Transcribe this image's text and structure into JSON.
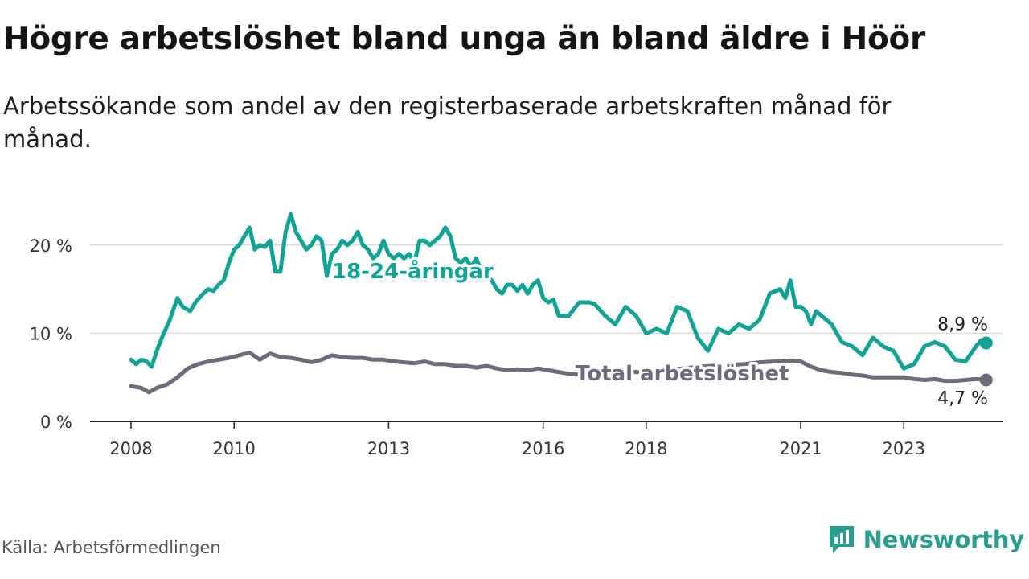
{
  "title": "Högre arbetslöshet bland unga än bland äldre i Höör",
  "subtitle": "Arbetssökande som andel av den registerbaserade arbetskraften månad för månad.",
  "source": "Källa: Arbetsförmedlingen",
  "brand": "Newsworthy",
  "colors": {
    "youth": "#12a394",
    "total": "#6e6c78",
    "grid": "#dddddd",
    "axis": "#222222",
    "brand": "#2a9d8f"
  },
  "chart_data": {
    "type": "line",
    "title": "Högre arbetslöshet bland unga än bland äldre i Höör",
    "xlabel": "",
    "ylabel": "",
    "xlim": [
      2008,
      2024.9
    ],
    "ylim": [
      0,
      25
    ],
    "yticks": [
      0,
      10,
      20
    ],
    "ytick_labels": [
      "0 %",
      "10 %",
      "20 %"
    ],
    "xticks": [
      2008,
      2010,
      2013,
      2016,
      2018,
      2021,
      2023
    ],
    "xtick_labels": [
      "2008",
      "2010",
      "2013",
      "2016",
      "2018",
      "2021",
      "2023"
    ],
    "grid": true,
    "series": [
      {
        "name": "18-24-åringar",
        "end_label": "8,9 %",
        "color": "#12a394",
        "x": [
          2008.0,
          2008.1,
          2008.2,
          2008.3,
          2008.4,
          2008.5,
          2008.6,
          2008.75,
          2008.9,
          2009.0,
          2009.15,
          2009.25,
          2009.4,
          2009.5,
          2009.6,
          2009.7,
          2009.8,
          2009.9,
          2010.0,
          2010.1,
          2010.2,
          2010.3,
          2010.4,
          2010.5,
          2010.6,
          2010.7,
          2010.8,
          2010.9,
          2011.0,
          2011.1,
          2011.2,
          2011.3,
          2011.4,
          2011.5,
          2011.6,
          2011.7,
          2011.8,
          2011.9,
          2012.0,
          2012.1,
          2012.2,
          2012.3,
          2012.4,
          2012.5,
          2012.6,
          2012.7,
          2012.8,
          2012.9,
          2013.0,
          2013.1,
          2013.2,
          2013.3,
          2013.4,
          2013.5,
          2013.6,
          2013.7,
          2013.8,
          2013.9,
          2014.0,
          2014.1,
          2014.2,
          2014.3,
          2014.4,
          2014.5,
          2014.6,
          2014.7,
          2014.8,
          2014.9,
          2015.0,
          2015.1,
          2015.2,
          2015.3,
          2015.4,
          2015.5,
          2015.6,
          2015.7,
          2015.8,
          2015.9,
          2016.0,
          2016.1,
          2016.2,
          2016.3,
          2016.5,
          2016.7,
          2016.9,
          2017.0,
          2017.2,
          2017.4,
          2017.6,
          2017.8,
          2018.0,
          2018.2,
          2018.4,
          2018.6,
          2018.8,
          2019.0,
          2019.2,
          2019.4,
          2019.6,
          2019.8,
          2020.0,
          2020.2,
          2020.4,
          2020.6,
          2020.7,
          2020.8,
          2020.9,
          2021.0,
          2021.1,
          2021.2,
          2021.3,
          2021.4,
          2021.6,
          2021.8,
          2022.0,
          2022.2,
          2022.4,
          2022.6,
          2022.8,
          2023.0,
          2023.2,
          2023.4,
          2023.6,
          2023.8,
          2024.0,
          2024.2,
          2024.4,
          2024.5,
          2024.6
        ],
        "y": [
          7.0,
          6.5,
          7.0,
          6.8,
          6.2,
          8.0,
          9.5,
          11.5,
          14.0,
          13.0,
          12.5,
          13.5,
          14.5,
          15.0,
          14.8,
          15.5,
          16.0,
          18.0,
          19.5,
          20.0,
          21.0,
          22.0,
          19.5,
          20.0,
          19.8,
          20.5,
          17.0,
          17.0,
          21.5,
          23.5,
          21.5,
          20.5,
          19.5,
          20.0,
          21.0,
          20.5,
          16.5,
          19.0,
          19.5,
          20.5,
          20.0,
          20.5,
          21.5,
          20.0,
          19.5,
          18.5,
          19.0,
          20.5,
          19.0,
          18.5,
          19.0,
          18.5,
          19.0,
          18.0,
          20.5,
          20.5,
          20.0,
          20.5,
          21.0,
          22.0,
          21.0,
          18.5,
          18.0,
          18.5,
          17.5,
          18.5,
          17.0,
          16.5,
          16.0,
          15.0,
          14.5,
          15.5,
          15.5,
          14.8,
          15.5,
          14.5,
          15.5,
          16.0,
          14.0,
          13.5,
          13.8,
          12.0,
          12.0,
          13.5,
          13.5,
          13.3,
          12.0,
          11.0,
          13.0,
          12.0,
          10.0,
          10.5,
          10.0,
          13.0,
          12.5,
          9.5,
          8.0,
          10.5,
          10.0,
          11.0,
          10.5,
          11.5,
          14.5,
          15.0,
          14.0,
          16.0,
          13.0,
          13.0,
          12.5,
          11.0,
          12.5,
          12.0,
          11.0,
          9.0,
          8.5,
          7.5,
          9.5,
          8.5,
          8.0,
          6.0,
          6.5,
          8.5,
          9.0,
          8.5,
          7.0,
          6.8,
          8.5,
          9.2,
          8.9
        ]
      },
      {
        "name": "Total arbetslöshet",
        "end_label": "4,7 %",
        "color": "#6e6c78",
        "x": [
          2008.0,
          2008.2,
          2008.35,
          2008.5,
          2008.7,
          2008.9,
          2009.1,
          2009.3,
          2009.5,
          2009.7,
          2009.9,
          2010.1,
          2010.3,
          2010.5,
          2010.7,
          2010.9,
          2011.1,
          2011.3,
          2011.5,
          2011.7,
          2011.9,
          2012.1,
          2012.3,
          2012.5,
          2012.7,
          2012.9,
          2013.1,
          2013.3,
          2013.5,
          2013.7,
          2013.9,
          2014.1,
          2014.3,
          2014.5,
          2014.7,
          2014.9,
          2015.1,
          2015.3,
          2015.5,
          2015.7,
          2015.9,
          2016.1,
          2016.3,
          2016.5,
          2016.7,
          2016.9,
          2017.2,
          2017.5,
          2017.8,
          2018.1,
          2018.4,
          2018.7,
          2019.0,
          2019.3,
          2019.6,
          2019.9,
          2020.2,
          2020.5,
          2020.8,
          2021.0,
          2021.2,
          2021.4,
          2021.6,
          2021.8,
          2022.0,
          2022.2,
          2022.4,
          2022.6,
          2022.8,
          2023.0,
          2023.2,
          2023.4,
          2023.6,
          2023.8,
          2024.0,
          2024.2,
          2024.4,
          2024.6
        ],
        "y": [
          4.0,
          3.8,
          3.3,
          3.8,
          4.2,
          5.0,
          6.0,
          6.5,
          6.8,
          7.0,
          7.2,
          7.5,
          7.8,
          7.0,
          7.7,
          7.3,
          7.2,
          7.0,
          6.7,
          7.0,
          7.5,
          7.3,
          7.2,
          7.2,
          7.0,
          7.0,
          6.8,
          6.7,
          6.6,
          6.8,
          6.5,
          6.5,
          6.3,
          6.3,
          6.1,
          6.3,
          6.0,
          5.8,
          5.9,
          5.8,
          6.0,
          5.8,
          5.6,
          5.4,
          5.3,
          5.5,
          5.6,
          5.7,
          5.6,
          5.5,
          5.8,
          6.0,
          6.2,
          6.3,
          6.4,
          6.5,
          6.7,
          6.8,
          6.9,
          6.8,
          6.2,
          5.8,
          5.6,
          5.5,
          5.3,
          5.2,
          5.0,
          5.0,
          5.0,
          5.0,
          4.8,
          4.7,
          4.8,
          4.6,
          4.6,
          4.7,
          4.8,
          4.7
        ]
      }
    ]
  }
}
